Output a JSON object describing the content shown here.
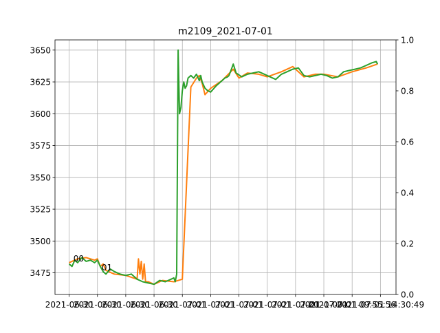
{
  "chart_data": {
    "type": "line",
    "title": "m2109_2021-07-01",
    "xlabel": "",
    "ylabel": "",
    "grid": true,
    "ylim": [
      3458,
      3658
    ],
    "yticks": [
      3475,
      3500,
      3525,
      3550,
      3575,
      3600,
      3625,
      3650
    ],
    "y2lim": [
      0.0,
      1.0
    ],
    "y2ticks": [
      "0.0",
      "0.2",
      "0.4",
      "0.6",
      "0.8",
      "1.0"
    ],
    "xticks": [
      "2021-06-30",
      "2021-06-30",
      "2021-06-30",
      "2021-06-30",
      "2021-07-01",
      "2021-07-01",
      "2021-07-01",
      "2021-07-01",
      "2021-07-01",
      "2021-07-01",
      "2021-07-01 09:55:56",
      "2021-07-01 14:30:49"
    ],
    "xlim": [
      -0.5,
      11.55
    ],
    "annotations": [
      {
        "text": "00",
        "x": 0.15,
        "y": 3484
      },
      {
        "text": "01",
        "x": 1.15,
        "y": 3477
      }
    ],
    "series": [
      {
        "color": "#ff7f0e",
        "x": [
          0,
          0.3,
          0.6,
          0.9,
          1.0,
          1.1,
          1.2,
          1.3,
          1.6,
          2.0,
          2.4,
          2.45,
          2.5,
          2.55,
          2.6,
          2.65,
          2.7,
          2.8,
          3.0,
          3.3,
          3.7,
          4.0,
          4.3,
          4.5,
          4.6,
          4.7,
          4.8,
          5.0,
          5.4,
          5.8,
          6.0,
          6.3,
          6.7,
          7.0,
          7.5,
          7.9,
          8.3,
          8.7,
          9.0,
          9.5,
          10.0,
          10.5,
          10.9
        ],
        "y": [
          3483,
          3486,
          3487,
          3485,
          3486,
          3480,
          3482,
          3477,
          3474,
          3473,
          3470,
          3486,
          3474,
          3484,
          3470,
          3482,
          3468,
          3468,
          3466,
          3469,
          3468,
          3470,
          3621,
          3628,
          3630,
          3624,
          3615,
          3620,
          3626,
          3635,
          3628,
          3632,
          3631,
          3629,
          3633,
          3637,
          3629,
          3631,
          3631,
          3629,
          3633,
          3636,
          3639
        ]
      },
      {
        "color": "#2ca02c",
        "x": [
          0,
          0.1,
          0.2,
          0.3,
          0.45,
          0.6,
          0.75,
          0.9,
          1.0,
          1.1,
          1.2,
          1.3,
          1.45,
          1.6,
          1.8,
          2.0,
          2.2,
          2.4,
          2.6,
          2.8,
          3.0,
          3.2,
          3.4,
          3.6,
          3.7,
          3.75,
          3.8,
          3.85,
          3.9,
          3.95,
          4.0,
          4.05,
          4.1,
          4.15,
          4.2,
          4.3,
          4.4,
          4.5,
          4.6,
          4.65,
          4.7,
          4.8,
          4.9,
          5.0,
          5.2,
          5.4,
          5.5,
          5.6,
          5.65,
          5.7,
          5.75,
          5.8,
          5.9,
          6.1,
          6.3,
          6.5,
          6.7,
          6.9,
          7.1,
          7.3,
          7.5,
          7.7,
          7.9,
          8.1,
          8.3,
          8.5,
          8.7,
          8.9,
          9.1,
          9.3,
          9.5,
          9.7,
          9.9,
          10.1,
          10.3,
          10.5,
          10.7,
          10.85,
          10.9
        ],
        "y": [
          3482,
          3480,
          3485,
          3483,
          3487,
          3484,
          3485,
          3483,
          3485,
          3480,
          3476,
          3474,
          3478,
          3476,
          3474,
          3473,
          3474,
          3470,
          3468,
          3467,
          3466,
          3469,
          3468,
          3470,
          3471,
          3468,
          3474,
          3650,
          3600,
          3605,
          3618,
          3625,
          3620,
          3622,
          3628,
          3630,
          3628,
          3631,
          3626,
          3630,
          3625,
          3620,
          3618,
          3617,
          3622,
          3626,
          3628,
          3629,
          3630,
          3633,
          3636,
          3639,
          3632,
          3629,
          3631,
          3632,
          3633,
          3631,
          3629,
          3627,
          3631,
          3633,
          3635,
          3636,
          3630,
          3629,
          3630,
          3631,
          3630,
          3628,
          3629,
          3633,
          3634,
          3635,
          3636,
          3638,
          3640,
          3641,
          3639
        ]
      }
    ]
  }
}
